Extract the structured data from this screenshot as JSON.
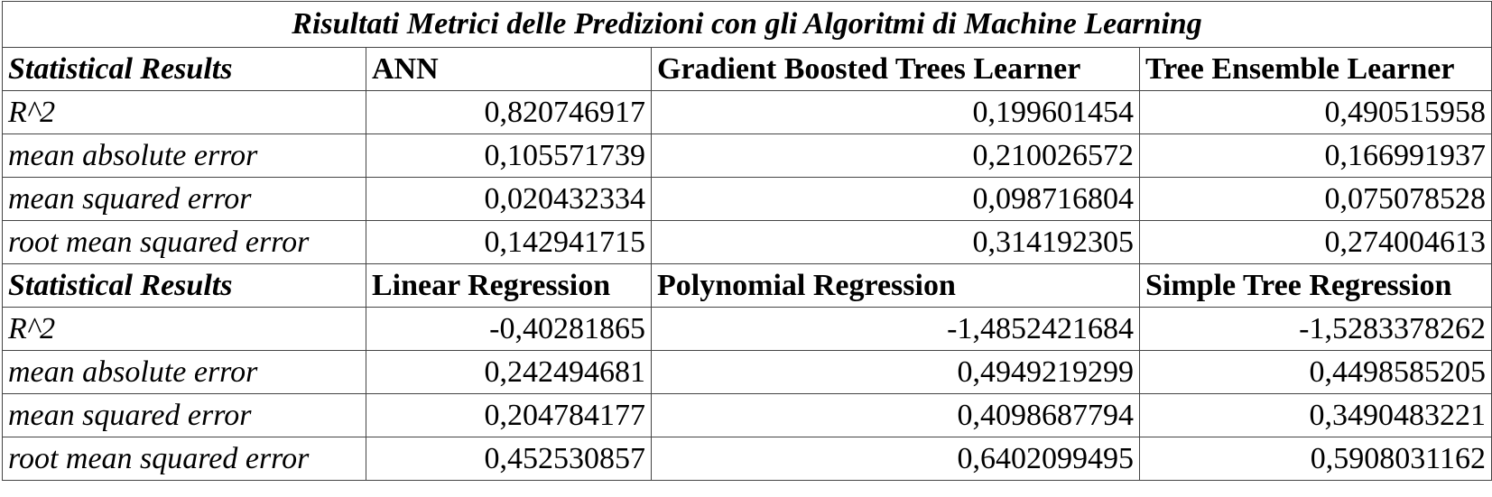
{
  "title": "Risultati Metrici delle Predizioni con gli Algoritmi di Machine Learning",
  "blocks": [
    {
      "header": [
        "Statistical Results",
        "ANN",
        "Gradient Boosted Trees Learner",
        "Tree Ensemble Learner"
      ],
      "rows": [
        [
          "R^2",
          "0,820746917",
          "0,199601454",
          "0,490515958"
        ],
        [
          "mean absolute error",
          "0,105571739",
          "0,210026572",
          "0,166991937"
        ],
        [
          "mean squared error",
          "0,020432334",
          "0,098716804",
          "0,075078528"
        ],
        [
          "root mean squared error",
          "0,142941715",
          "0,314192305",
          "0,274004613"
        ]
      ]
    },
    {
      "header": [
        "Statistical Results",
        "Linear Regression",
        "Polynomial Regression",
        "Simple Tree Regression"
      ],
      "rows": [
        [
          "R^2",
          "-0,40281865",
          "-1,4852421684",
          "-1,5283378262"
        ],
        [
          "mean absolute error",
          "0,242494681",
          "0,4949219299",
          "0,4498585205"
        ],
        [
          "mean squared error",
          "0,204784177",
          "0,4098687794",
          "0,3490483221"
        ],
        [
          "root mean squared error",
          "0,452530857",
          "0,6402099495",
          "0,5908031162"
        ]
      ]
    }
  ]
}
